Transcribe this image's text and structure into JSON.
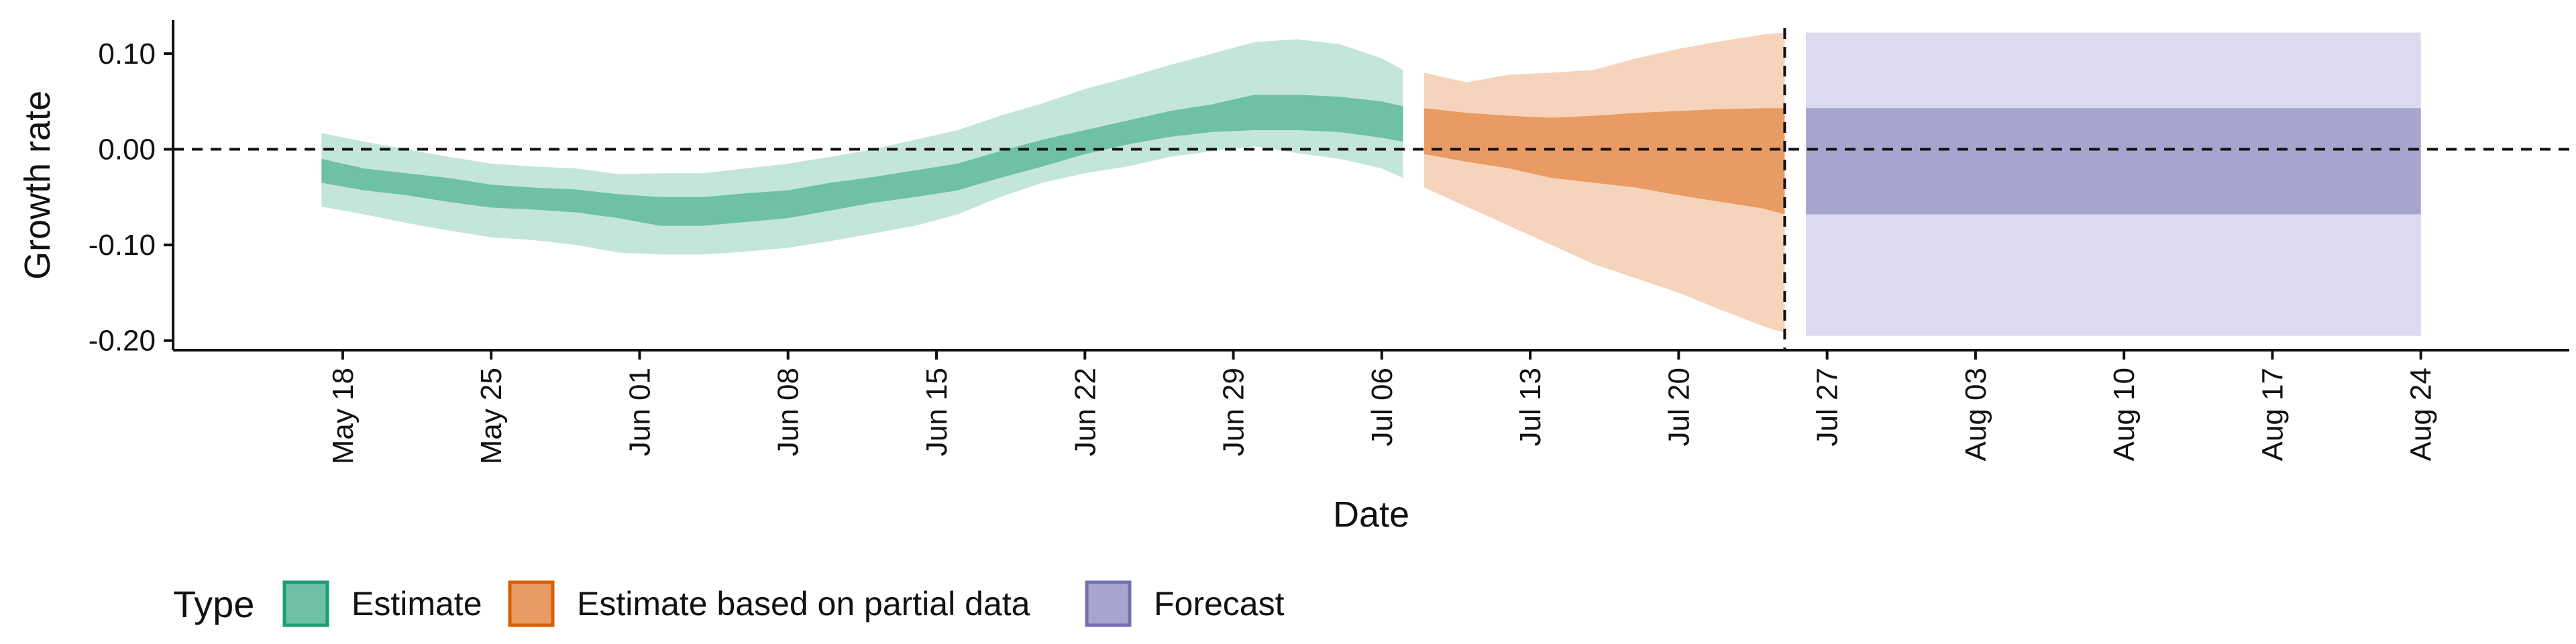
{
  "chart_data": {
    "type": "area",
    "xlabel": "Date",
    "ylabel": "Growth rate",
    "x_axis_type": "date",
    "xlim": [
      "2021-05-10",
      "2021-08-31"
    ],
    "ylim": [
      -0.21,
      0.135
    ],
    "y_ticks": [
      {
        "value": 0.1,
        "label": "0.10"
      },
      {
        "value": 0.0,
        "label": "0.00"
      },
      {
        "value": -0.1,
        "label": "-0.10"
      },
      {
        "value": -0.2,
        "label": "-0.20"
      }
    ],
    "x_ticks": [
      {
        "date": "2021-05-18",
        "label": "May 18"
      },
      {
        "date": "2021-05-25",
        "label": "May 25"
      },
      {
        "date": "2021-06-01",
        "label": "Jun 01"
      },
      {
        "date": "2021-06-08",
        "label": "Jun 08"
      },
      {
        "date": "2021-06-15",
        "label": "Jun 15"
      },
      {
        "date": "2021-06-22",
        "label": "Jun 22"
      },
      {
        "date": "2021-06-29",
        "label": "Jun 29"
      },
      {
        "date": "2021-07-06",
        "label": "Jul 06"
      },
      {
        "date": "2021-07-13",
        "label": "Jul 13"
      },
      {
        "date": "2021-07-20",
        "label": "Jul 20"
      },
      {
        "date": "2021-07-27",
        "label": "Jul 27"
      },
      {
        "date": "2021-08-03",
        "label": "Aug 03"
      },
      {
        "date": "2021-08-10",
        "label": "Aug 10"
      },
      {
        "date": "2021-08-17",
        "label": "Aug 17"
      },
      {
        "date": "2021-08-24",
        "label": "Aug 24"
      }
    ],
    "reference_lines": [
      {
        "axis": "y",
        "value": 0.0,
        "style": "dashed"
      },
      {
        "axis": "x",
        "value": "2021-07-25",
        "style": "dashed"
      }
    ],
    "grid": false,
    "legend": {
      "title": "Type",
      "position": "bottom-left",
      "entries": [
        {
          "label": "Estimate",
          "fill": "#6fc1a5",
          "border": "#1b9e77"
        },
        {
          "label": "Estimate based on partial data",
          "fill": "#e89b62",
          "border": "#d95f02"
        },
        {
          "label": "Forecast",
          "fill": "#a8a4d0",
          "border": "#7570b3"
        }
      ]
    },
    "series": [
      {
        "name": "Estimate",
        "outer_color": "#c4e6da",
        "inner_color": "#6fc1a5",
        "points": [
          {
            "x": "2021-05-17",
            "lo90": -0.06,
            "lo50": -0.035,
            "hi50": -0.01,
            "hi90": 0.017
          },
          {
            "x": "2021-05-19",
            "lo90": -0.068,
            "lo50": -0.043,
            "hi50": -0.02,
            "hi90": 0.008
          },
          {
            "x": "2021-05-21",
            "lo90": -0.077,
            "lo50": -0.048,
            "hi50": -0.025,
            "hi90": 0.0
          },
          {
            "x": "2021-05-23",
            "lo90": -0.085,
            "lo50": -0.055,
            "hi50": -0.03,
            "hi90": -0.008
          },
          {
            "x": "2021-05-25",
            "lo90": -0.092,
            "lo50": -0.061,
            "hi50": -0.037,
            "hi90": -0.015
          },
          {
            "x": "2021-05-27",
            "lo90": -0.095,
            "lo50": -0.063,
            "hi50": -0.04,
            "hi90": -0.018
          },
          {
            "x": "2021-05-29",
            "lo90": -0.1,
            "lo50": -0.066,
            "hi50": -0.042,
            "hi90": -0.02
          },
          {
            "x": "2021-05-31",
            "lo90": -0.108,
            "lo50": -0.072,
            "hi50": -0.047,
            "hi90": -0.026
          },
          {
            "x": "2021-06-02",
            "lo90": -0.11,
            "lo50": -0.08,
            "hi50": -0.05,
            "hi90": -0.025
          },
          {
            "x": "2021-06-04",
            "lo90": -0.11,
            "lo50": -0.08,
            "hi50": -0.05,
            "hi90": -0.025
          },
          {
            "x": "2021-06-06",
            "lo90": -0.107,
            "lo50": -0.076,
            "hi50": -0.046,
            "hi90": -0.02
          },
          {
            "x": "2021-06-08",
            "lo90": -0.103,
            "lo50": -0.072,
            "hi50": -0.043,
            "hi90": -0.015
          },
          {
            "x": "2021-06-10",
            "lo90": -0.096,
            "lo50": -0.064,
            "hi50": -0.035,
            "hi90": -0.008
          },
          {
            "x": "2021-06-12",
            "lo90": -0.088,
            "lo50": -0.056,
            "hi50": -0.029,
            "hi90": 0.0
          },
          {
            "x": "2021-06-14",
            "lo90": -0.08,
            "lo50": -0.05,
            "hi50": -0.022,
            "hi90": 0.01
          },
          {
            "x": "2021-06-16",
            "lo90": -0.068,
            "lo50": -0.043,
            "hi50": -0.015,
            "hi90": 0.02
          },
          {
            "x": "2021-06-18",
            "lo90": -0.05,
            "lo50": -0.03,
            "hi50": -0.002,
            "hi90": 0.035
          },
          {
            "x": "2021-06-20",
            "lo90": -0.035,
            "lo50": -0.018,
            "hi50": 0.01,
            "hi90": 0.048
          },
          {
            "x": "2021-06-22",
            "lo90": -0.025,
            "lo50": -0.005,
            "hi50": 0.02,
            "hi90": 0.063
          },
          {
            "x": "2021-06-24",
            "lo90": -0.018,
            "lo50": 0.005,
            "hi50": 0.03,
            "hi90": 0.075
          },
          {
            "x": "2021-06-26",
            "lo90": -0.008,
            "lo50": 0.013,
            "hi50": 0.04,
            "hi90": 0.088
          },
          {
            "x": "2021-06-28",
            "lo90": -0.002,
            "lo50": 0.018,
            "hi50": 0.047,
            "hi90": 0.1
          },
          {
            "x": "2021-06-30",
            "lo90": 0.003,
            "lo50": 0.02,
            "hi50": 0.057,
            "hi90": 0.112
          },
          {
            "x": "2021-07-02",
            "lo90": -0.004,
            "lo50": 0.02,
            "hi50": 0.057,
            "hi90": 0.115
          },
          {
            "x": "2021-07-04",
            "lo90": -0.01,
            "lo50": 0.018,
            "hi50": 0.055,
            "hi90": 0.11
          },
          {
            "x": "2021-07-06",
            "lo90": -0.02,
            "lo50": 0.012,
            "hi50": 0.05,
            "hi90": 0.095
          },
          {
            "x": "2021-07-07",
            "lo90": -0.03,
            "lo50": 0.008,
            "hi50": 0.045,
            "hi90": 0.083
          }
        ]
      },
      {
        "name": "Estimate based on partial data",
        "outer_color": "#f5d4bb",
        "inner_color": "#e89b62",
        "points": [
          {
            "x": "2021-07-08",
            "lo90": -0.04,
            "lo50": -0.005,
            "hi50": 0.043,
            "hi90": 0.08
          },
          {
            "x": "2021-07-10",
            "lo90": -0.06,
            "lo50": -0.013,
            "hi50": 0.038,
            "hi90": 0.07
          },
          {
            "x": "2021-07-12",
            "lo90": -0.08,
            "lo50": -0.02,
            "hi50": 0.035,
            "hi90": 0.078
          },
          {
            "x": "2021-07-14",
            "lo90": -0.1,
            "lo50": -0.03,
            "hi50": 0.033,
            "hi90": 0.08
          },
          {
            "x": "2021-07-16",
            "lo90": -0.12,
            "lo50": -0.035,
            "hi50": 0.035,
            "hi90": 0.083
          },
          {
            "x": "2021-07-18",
            "lo90": -0.135,
            "lo50": -0.04,
            "hi50": 0.038,
            "hi90": 0.095
          },
          {
            "x": "2021-07-20",
            "lo90": -0.15,
            "lo50": -0.048,
            "hi50": 0.04,
            "hi90": 0.105
          },
          {
            "x": "2021-07-22",
            "lo90": -0.168,
            "lo50": -0.055,
            "hi50": 0.042,
            "hi90": 0.113
          },
          {
            "x": "2021-07-24",
            "lo90": -0.185,
            "lo50": -0.062,
            "hi50": 0.043,
            "hi90": 0.12
          },
          {
            "x": "2021-07-25",
            "lo90": -0.192,
            "lo50": -0.068,
            "hi50": 0.043,
            "hi90": 0.122
          }
        ]
      },
      {
        "name": "Forecast",
        "outer_color": "#dcdaee",
        "inner_color": "#a8a4d0",
        "points": [
          {
            "x": "2021-07-26",
            "lo90": -0.195,
            "lo50": -0.068,
            "hi50": 0.043,
            "hi90": 0.122
          },
          {
            "x": "2021-08-24",
            "lo90": -0.195,
            "lo50": -0.068,
            "hi50": 0.043,
            "hi90": 0.122
          }
        ]
      }
    ]
  }
}
